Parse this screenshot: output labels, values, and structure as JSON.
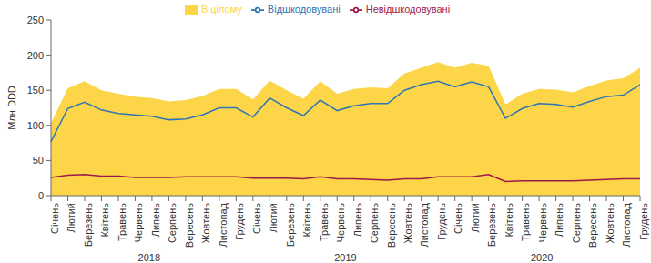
{
  "chart_data": {
    "type": "area_line",
    "y_label": "Млн DDD",
    "categories": [
      "Січень",
      "Лютий",
      "Березень",
      "Квітень",
      "Травень",
      "Червень",
      "Липень",
      "Серпень",
      "Вересень",
      "Жовтень",
      "Листопад",
      "Грудень",
      "Січень",
      "Лютий",
      "Березень",
      "Квітень",
      "Травень",
      "Червень",
      "Липень",
      "Серпень",
      "Вересень",
      "Жовтень",
      "Листопад",
      "Грудень",
      "Січень",
      "Лютий",
      "Березень",
      "Квітень",
      "Травень",
      "Червень",
      "Липень",
      "Серпень",
      "Вересень",
      "Жовтень",
      "Листопад",
      "Грудень"
    ],
    "years": [
      "2018",
      "2019",
      "2020"
    ],
    "series": [
      {
        "name": "В цілому",
        "type": "area",
        "color": "#fdd548",
        "values": [
          103,
          153,
          163,
          150,
          145,
          141,
          139,
          134,
          136,
          142,
          152,
          152,
          137,
          164,
          150,
          138,
          163,
          145,
          152,
          154,
          153,
          174,
          182,
          190,
          182,
          189,
          185,
          130,
          145,
          152,
          151,
          147,
          156,
          164,
          167,
          182
        ]
      },
      {
        "name": "Відшкодовувані",
        "type": "line",
        "color": "#2e75b6",
        "values": [
          77,
          124,
          133,
          122,
          117,
          115,
          113,
          108,
          109,
          115,
          125,
          125,
          112,
          139,
          125,
          114,
          136,
          121,
          128,
          131,
          131,
          150,
          158,
          163,
          155,
          162,
          155,
          110,
          124,
          131,
          130,
          126,
          134,
          141,
          143,
          158
        ]
      },
      {
        "name": "Невідшкодовувані",
        "type": "line",
        "color": "#a0194b",
        "values": [
          26,
          29,
          30,
          28,
          28,
          26,
          26,
          26,
          27,
          27,
          27,
          27,
          25,
          25,
          25,
          24,
          27,
          24,
          24,
          23,
          22,
          24,
          24,
          27,
          27,
          27,
          30,
          20,
          21,
          21,
          21,
          21,
          22,
          23,
          24,
          24
        ]
      }
    ],
    "ylim": [
      0,
      250
    ],
    "yticks": [
      0,
      50,
      100,
      150,
      200,
      250
    ],
    "grid": false,
    "legend": "top"
  }
}
